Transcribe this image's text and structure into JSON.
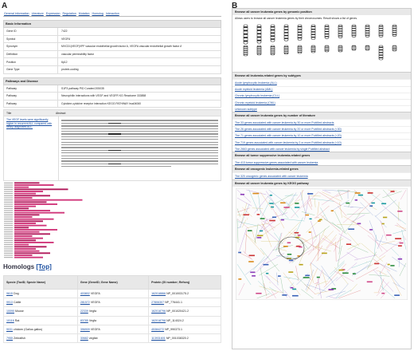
{
  "panel_a_letter": "A",
  "panel_b_letter": "B",
  "tabs": [
    "General information",
    "Literature",
    "Expression",
    "Regulation",
    "Mutation",
    "Homolog",
    "Interaction"
  ],
  "basic_info": {
    "header": "Basic Information",
    "rows": [
      {
        "key": "Gene ID",
        "value": "7422"
      },
      {
        "key": "Symbol",
        "value": "VEGFA"
      },
      {
        "key": "Synonym",
        "value": "MVCD1|VEGF|VPF  vascular endothelial growth factor A, VEGFA vascular endothelial growth factor A"
      },
      {
        "key": "Definition",
        "value": "vascular permeability factor"
      },
      {
        "key": "Position",
        "value": "6p12"
      },
      {
        "key": "Gene Type",
        "value": "protein-coding"
      }
    ]
  },
  "pathways": {
    "header": "Pathways and Disease",
    "rows": [
      {
        "key": "Pathway",
        "value": "S1P3 pathway PID Curated 205035"
      },
      {
        "key": "Pathway",
        "value": "Neurophilin interactions with VEGF and VEGFR KG Reactome 333858"
      },
      {
        "key": "Pathway",
        "value": "Cytokine-cytokine receptor interaction KEGG PATHWAY hsa04060"
      }
    ]
  },
  "abstract": {
    "col_title": "Title",
    "col_abstract": "Abstract",
    "title_text": "The VEGF levels were significantly higher in recurrent ALL compared with newly diagnosed ALL."
  },
  "homologs": {
    "title": "Homologs",
    "top_link": "[Top]",
    "columns": [
      "Specie (TaxID; Specie Name)",
      "Gene (GeneID; Gene Name)",
      "Protein (GI number; Refseq)"
    ],
    "rows": [
      {
        "tax": "9615",
        "species": "Dog",
        "gene_id": "403802",
        "gene": "VEGFA",
        "gi": "162018866",
        "refseq": "NP_001003175.2"
      },
      {
        "tax": "9913",
        "species": "Cattle",
        "gene_id": "281572",
        "gene": "VEGFA",
        "gi": "27806307",
        "refseq": "NP_776441.1"
      },
      {
        "tax": "10090",
        "species": "Mouse",
        "gene_id": "22339",
        "gene": "Vegfa",
        "gi": "162018796",
        "refseq": "NP_001020421.2"
      },
      {
        "tax": "10116",
        "species": "Rat",
        "gene_id": "83785",
        "gene": "Vegfa",
        "gi": "162018798",
        "refseq": "NP_114024.2"
      },
      {
        "tax": "9031",
        "species": "chicken (Gallus gallus)",
        "gene_id": "396909",
        "gene": "VEGFA",
        "gi": "45384272",
        "refseq": "NP_990373.1"
      },
      {
        "tax": "7955",
        "species": "Zebrafish",
        "gene_id": "30682",
        "gene": "vegfab",
        "gi": "113931601",
        "refseq": "NP_001038320.2"
      }
    ]
  },
  "expression_bars": [
    0.35,
    0.55,
    0.2,
    0.75,
    0.4,
    0.3,
    0.5,
    0.25,
    0.95,
    0.45,
    0.6,
    0.3,
    0.2,
    0.5,
    0.7,
    0.35,
    0.25,
    0.55,
    0.4,
    0.3,
    0.45,
    0.2,
    0.6,
    0.35,
    0.5,
    0.25,
    0.4,
    0.3,
    0.55,
    0.2,
    0.45,
    0.3,
    0.35,
    0.5,
    0.25,
    0.4
  ],
  "panel_b": {
    "genomic_header": "Browse all cancer leukemia genes by genomic position",
    "genomic_text": "Allows users to browse all cancer leukemia genes by their chromosomes. Result shows a list of genes.",
    "subtype_header": "Browse all leukemia-related genes by subtypes",
    "subtypes": [
      "Acute lymphocytic leukemia (ALL)",
      "Acute myeloid leukemia (AML)",
      "Chronic lymphocytic leukemia (CLL)",
      "Chronic myeloid leukemia (CML)",
      "Unknown subtype"
    ],
    "literature_header": "Browse all cancer leukemia genes by number of literature",
    "literature": [
      "The 33 genes associated with cancer leukemia by 30 or more PubMed abstracts",
      "The 26 genes associated with cancer leukemia by 20 or more PubMed abstracts (<30)",
      "The 71 genes associated with cancer leukemia by 10 or more PubMed abstracts (<20)",
      "The 719 genes associated with cancer leukemia by 2 or more PubMed abstracts (<10)",
      "The 2663 genes associated with cancer leukemia by single PubMed abstract"
    ],
    "suppressor_header": "Browse all tumor suppressive leukemia-related genes",
    "suppressor": [
      "The 413 tumor suppressive genes associated with cancer leukemia"
    ],
    "oncogenic_header": "Browse all oncogenic leukemia-related genes",
    "oncogenic": [
      "The 320 oncogenic genes associated with cancer leukemia"
    ],
    "kegg_header": "Browse all cancer leukemia genes by KEGG pathway"
  }
}
